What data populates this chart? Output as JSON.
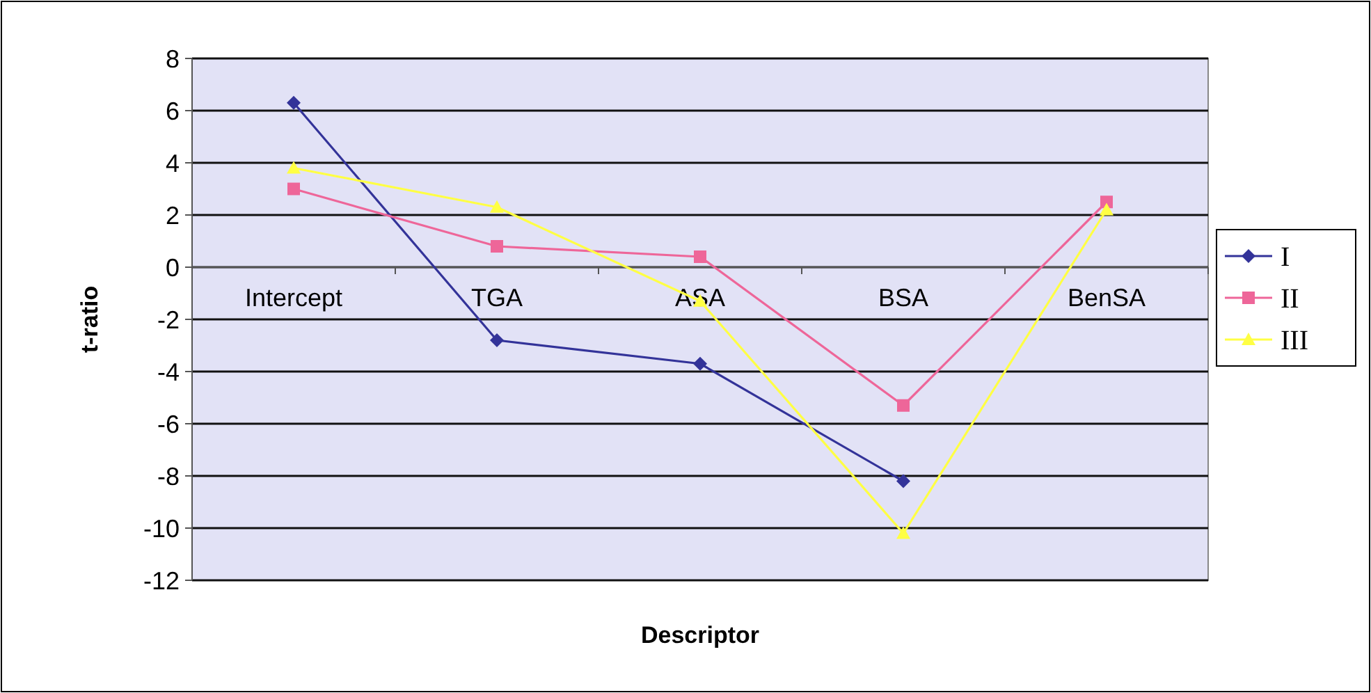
{
  "chart_data": {
    "type": "line",
    "xlabel": "Descriptor",
    "ylabel": "t-ratio",
    "categories": [
      "Intercept",
      "TGA",
      "ASA",
      "BSA",
      "BenSA"
    ],
    "series": [
      {
        "name": "I",
        "color": "#333399",
        "marker": "diamond",
        "values": [
          6.3,
          -2.8,
          -3.7,
          -8.2,
          null
        ]
      },
      {
        "name": "II",
        "color": "#ee6699",
        "marker": "square",
        "values": [
          3.0,
          0.8,
          0.4,
          -5.3,
          2.5
        ]
      },
      {
        "name": "III",
        "color": "#ffff44",
        "marker": "triangle",
        "values": [
          3.8,
          2.3,
          -1.3,
          -10.2,
          2.2
        ]
      }
    ],
    "ylim": [
      -12,
      8
    ],
    "yticks": [
      -12,
      -10,
      -8,
      -6,
      -4,
      -2,
      0,
      2,
      4,
      6,
      8
    ],
    "grid": "y",
    "legend": "right"
  }
}
